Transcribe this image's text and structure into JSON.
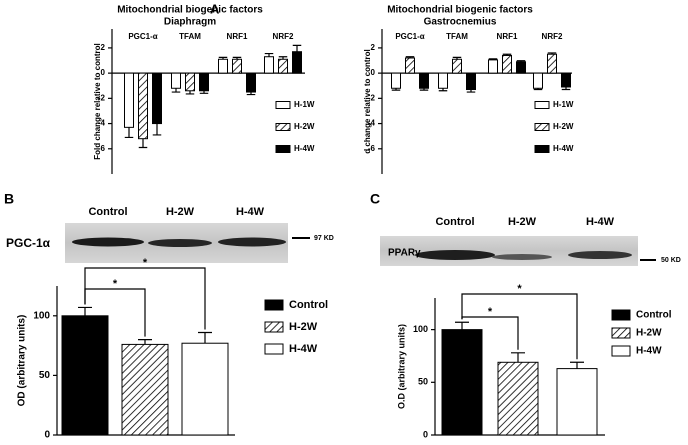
{
  "panel_labels": [
    "A",
    "B",
    "C"
  ],
  "chart_data": [
    {
      "type": "bar",
      "title": "Mitochondrial biogenic factors",
      "subtitle": "Diaphragm",
      "y_label": "Fold change relative to control",
      "categories": [
        "PGC1-α",
        "TFAM",
        "NRF1",
        "NRF2"
      ],
      "series": [
        {
          "name": "H-1W",
          "color": "#ffffff",
          "pattern": "solid",
          "values": [
            -4.3,
            -1.2,
            1.1,
            1.3
          ],
          "errors": [
            0.8,
            0.3,
            0.15,
            0.25
          ]
        },
        {
          "name": "H-2W",
          "color": "#ffffff",
          "pattern": "hatch",
          "values": [
            -5.2,
            -1.4,
            1.1,
            1.1
          ],
          "errors": [
            0.7,
            0.25,
            0.15,
            0.2
          ]
        },
        {
          "name": "H-4W",
          "color": "#000000",
          "pattern": "solid",
          "values": [
            -4.0,
            -1.4,
            -1.5,
            1.7
          ],
          "errors": [
            0.9,
            0.2,
            0.2,
            0.5
          ]
        }
      ],
      "ylim": [
        -8,
        3.5
      ],
      "yticks": [
        2,
        0,
        -2,
        -4,
        -6
      ]
    },
    {
      "type": "bar",
      "title": "Mitochondrial biogenic factors",
      "subtitle": "Gastrocnemius",
      "y_label": "d change relative to control",
      "categories": [
        "PGC1-α",
        "TFAM",
        "NRF1",
        "NRF2"
      ],
      "series": [
        {
          "name": "H-1W",
          "color": "#ffffff",
          "pattern": "solid",
          "values": [
            -1.2,
            -1.2,
            1.05,
            -1.2
          ],
          "errors": [
            0.15,
            0.2,
            0.08,
            0.1
          ]
        },
        {
          "name": "H-2W",
          "color": "#ffffff",
          "pattern": "hatch",
          "values": [
            1.2,
            1.1,
            1.4,
            1.5
          ],
          "errors": [
            0.1,
            0.15,
            0.1,
            0.1
          ]
        },
        {
          "name": "H-4W",
          "color": "#000000",
          "pattern": "solid",
          "values": [
            -1.2,
            -1.3,
            0.9,
            -1.1
          ],
          "errors": [
            0.15,
            0.2,
            0.08,
            0.2
          ]
        }
      ],
      "ylim": [
        -8,
        3.5
      ],
      "yticks": [
        2,
        0,
        -2,
        -4,
        -6
      ]
    },
    {
      "type": "bar",
      "y_label": "OD (arbitrary units)",
      "blot": {
        "lanes": [
          "Control",
          "H-2W",
          "H-4W"
        ],
        "protein": "PGC-1α",
        "marker": "97 KD"
      },
      "categories": [
        "Control",
        "H-2W",
        "H-4W"
      ],
      "colors": [
        "#000000",
        "#ffffff",
        "#ffffff"
      ],
      "patterns": [
        "solid",
        "hatch",
        "solid"
      ],
      "values": [
        100,
        76,
        77
      ],
      "errors": [
        7,
        4,
        9
      ],
      "annotations": [
        {
          "from": 0,
          "to": 1,
          "label": "*"
        },
        {
          "from": 0,
          "to": 2,
          "label": "*"
        }
      ],
      "ylim": [
        0,
        125
      ],
      "yticks": [
        0,
        50,
        100
      ]
    },
    {
      "type": "bar",
      "y_label": "O.D (arbitrary units)",
      "blot": {
        "lanes": [
          "Control",
          "H-2W",
          "H-4W"
        ],
        "protein": "PPARγ",
        "marker": "50 KD"
      },
      "categories": [
        "Control",
        "H-2W",
        "H-4W"
      ],
      "colors": [
        "#000000",
        "#ffffff",
        "#ffffff"
      ],
      "patterns": [
        "solid",
        "hatch",
        "solid"
      ],
      "values": [
        100,
        69,
        63
      ],
      "errors": [
        7,
        9,
        6
      ],
      "annotations": [
        {
          "from": 0,
          "to": 1,
          "label": "*"
        },
        {
          "from": 0,
          "to": 2,
          "label": "*"
        }
      ],
      "ylim": [
        0,
        130
      ],
      "yticks": [
        0,
        50,
        100
      ]
    }
  ]
}
